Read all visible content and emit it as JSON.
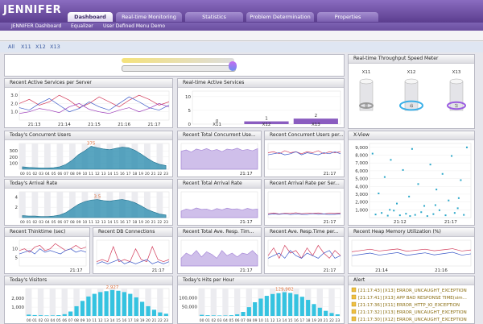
{
  "header": {
    "logo": "JENNIFER",
    "tabs": [
      "Dashboard",
      "Real-time Monitoring",
      "Statistics",
      "Problem Determination",
      "Properties"
    ]
  },
  "subnav": [
    "JENNIFER Dashboard",
    "Equalizer",
    "User Defined Menu Demo"
  ],
  "server_tabs": [
    "All",
    "X11",
    "X12",
    "X13"
  ],
  "hours": [
    "00",
    "01",
    "02",
    "03",
    "04",
    "05",
    "06",
    "07",
    "08",
    "09",
    "10",
    "11",
    "12",
    "13",
    "14",
    "15",
    "16",
    "17",
    "18",
    "19",
    "20",
    "21",
    "22",
    "23"
  ],
  "panels": [
    {
      "title": "Recent Active Services per Server",
      "type": "line",
      "ylim": [
        0,
        3.5
      ],
      "yticks": [
        {
          "value": 1,
          "label": "1.0"
        },
        {
          "value": 2,
          "label": "2.0"
        },
        {
          "value": 3,
          "label": "3.0"
        }
      ],
      "xticks": [
        "21:13",
        "21:14",
        "21:15",
        "21:16",
        "21:17"
      ],
      "series": [
        {
          "color": "#d23b5a",
          "values": [
            2,
            2.5,
            1.8,
            2.2,
            3,
            2.4,
            1.5,
            2,
            2.8,
            2.2,
            1.6,
            2.4,
            3,
            2.5,
            1.8,
            2.2
          ]
        },
        {
          "color": "#3b58c8",
          "values": [
            1.5,
            1.2,
            2,
            2.6,
            1.8,
            1,
            1.4,
            2.2,
            1.6,
            1.2,
            2,
            2.8,
            2.2,
            1.5,
            1.2,
            1.8
          ]
        },
        {
          "color": "#9b3bb8",
          "values": [
            0.8,
            1,
            1.4,
            1.2,
            0.9,
            1.6,
            2,
            1.3,
            1,
            0.8,
            1.2,
            1.5,
            1,
            1.4,
            2,
            1.6
          ]
        }
      ]
    },
    {
      "title": "Real-time Active Services",
      "type": "bar",
      "ylim": [
        0,
        12
      ],
      "yticks": [
        0,
        5,
        10
      ],
      "categories": [
        "X11",
        "X12",
        "X13"
      ],
      "values": [
        0,
        1,
        2
      ],
      "color": "#8a5cc0"
    },
    {
      "title": "Real-time Throughput Speed Meter",
      "type": "meter",
      "categories": [
        "X11",
        "X12",
        "X13"
      ],
      "values": [
        0,
        4,
        2
      ]
    },
    {
      "title": "Today's Concurrent Users",
      "type": "hourly_area",
      "ylim": [
        0,
        420
      ],
      "yticks": [
        100,
        200,
        300
      ],
      "color": "#2f8fb0",
      "values": [
        40,
        30,
        25,
        20,
        20,
        25,
        40,
        80,
        150,
        240,
        300,
        375,
        350,
        330,
        320,
        340,
        360,
        350,
        310,
        250,
        180,
        120,
        80,
        60
      ]
    },
    {
      "title": "Recent Total Concurrent Use...",
      "type": "area",
      "ylim": [
        0,
        60
      ],
      "xticks": [
        "21:17"
      ],
      "color": "#a88ad8",
      "values": [
        42,
        45,
        40,
        47,
        44,
        48,
        43,
        46,
        41,
        47,
        45,
        49,
        44,
        46,
        43,
        48
      ]
    },
    {
      "title": "Recent Concurrent Users per...",
      "type": "line",
      "ylim": [
        0,
        25
      ],
      "xticks": [
        "21:17"
      ],
      "series": [
        {
          "color": "#d23b5a",
          "values": [
            16,
            17,
            15,
            18,
            16,
            17,
            15,
            17,
            16,
            18,
            15,
            17,
            16,
            17
          ]
        },
        {
          "color": "#3b58c8",
          "values": [
            14,
            15,
            16,
            14,
            15,
            17,
            14,
            16,
            15,
            14,
            16,
            15,
            17,
            15
          ]
        }
      ]
    },
    {
      "title": "X-View",
      "type": "scatter",
      "xlim": [
        0,
        10
      ],
      "ylim": [
        0,
        9500
      ],
      "color": "#2aa7c9",
      "yticks": [
        {
          "value": 1000,
          "label": "1,000"
        },
        {
          "value": 2000,
          "label": "2,000"
        },
        {
          "value": 3000,
          "label": "3,000"
        },
        {
          "value": 4000,
          "label": "4,000"
        },
        {
          "value": 5000,
          "label": "5,000"
        },
        {
          "value": 6000,
          "label": "6,000"
        },
        {
          "value": 7000,
          "label": "7,000"
        },
        {
          "value": 8000,
          "label": "8,000"
        },
        {
          "value": 9000,
          "label": "9,000"
        }
      ],
      "xticks": [
        {
          "value": 3,
          "label": "21:12"
        },
        {
          "value": 8,
          "label": "21:17"
        }
      ],
      "x": [
        0.3,
        0.6,
        0.9,
        1.2,
        1.5,
        1.8,
        2.1,
        2.4,
        2.7,
        3.0,
        3.3,
        3.6,
        3.9,
        4.2,
        4.5,
        4.8,
        5.1,
        5.4,
        5.7,
        6.0,
        6.3,
        6.6,
        6.9,
        7.2,
        7.5,
        7.8,
        8.1,
        8.4,
        8.7,
        9.0,
        9.3,
        9.6,
        2.0,
        4.0,
        6.5,
        8.8
      ],
      "y": [
        8200,
        400,
        3100,
        600,
        5200,
        250,
        7400,
        900,
        1800,
        300,
        6100,
        500,
        2700,
        8800,
        350,
        4300,
        700,
        1500,
        200,
        6800,
        450,
        3600,
        950,
        5600,
        300,
        2200,
        7900,
        600,
        1200,
        4800,
        350,
        9000,
        1000,
        200,
        1600,
        2500
      ]
    },
    {
      "title": "Today's Arrival Rate",
      "type": "hourly_area",
      "ylim": [
        0,
        5
      ],
      "yticks": [
        2,
        4
      ],
      "color": "#2f8fb0",
      "values": [
        0.4,
        0.3,
        0.3,
        0.2,
        0.2,
        0.3,
        0.5,
        1,
        1.8,
        2.6,
        3.1,
        3.4,
        3.5,
        3.3,
        3.2,
        3.4,
        3.5,
        3.3,
        2.9,
        2.3,
        1.6,
        1.1,
        0.7,
        0.5
      ]
    },
    {
      "title": "Recent Total Arrival Rate",
      "type": "area",
      "ylim": [
        0,
        12
      ],
      "xticks": [
        "21:17"
      ],
      "color": "#a88ad8",
      "values": [
        3,
        4,
        3.5,
        4.5,
        3.8,
        4,
        3.2,
        4.2,
        3.6,
        4.4,
        3.9,
        4.1,
        3.5,
        4.3,
        3.7,
        4
      ]
    },
    {
      "title": "Recent Arrival Rate per Ser...",
      "type": "line",
      "ylim": [
        0,
        10
      ],
      "xticks": [
        "21:17"
      ],
      "series": [
        {
          "color": "#d23b5a",
          "values": [
            1.5,
            1.8,
            1.4,
            1.7,
            1.6,
            1.9,
            1.5,
            1.7,
            1.6,
            1.8,
            1.4,
            1.7,
            1.6,
            1.8
          ]
        },
        {
          "color": "#3b58c8",
          "values": [
            1.2,
            1.4,
            1.3,
            1.5,
            1.2,
            1.4,
            1.3,
            1.2,
            1.5,
            1.3,
            1.4,
            1.2,
            1.3,
            1.4
          ]
        }
      ]
    },
    {
      "title": "Recent Thinktime (sec)",
      "type": "line",
      "ylim": [
        0,
        15
      ],
      "yticks": [
        5,
        10
      ],
      "xticks": [
        "21:17"
      ],
      "series": [
        {
          "color": "#d23b5a",
          "values": [
            9,
            10,
            8,
            11,
            12,
            9,
            10,
            13,
            11,
            9,
            10,
            12,
            10,
            11
          ]
        },
        {
          "color": "#3b58c8",
          "values": [
            7,
            8,
            9,
            7,
            10,
            8,
            9,
            8,
            7,
            9,
            10,
            8,
            9,
            8
          ]
        }
      ]
    },
    {
      "title": "Recent DB Connections",
      "type": "line",
      "ylim": [
        0,
        12
      ],
      "xticks": [
        "21:17"
      ],
      "series": [
        {
          "color": "#d23b5a",
          "values": [
            2,
            3,
            2,
            9,
            2,
            3,
            2,
            8,
            3,
            2,
            9,
            3,
            2,
            3
          ]
        },
        {
          "color": "#3b58c8",
          "values": [
            1,
            2,
            1,
            2,
            3,
            1,
            2,
            1,
            2,
            3,
            1,
            2,
            1,
            2
          ]
        }
      ]
    },
    {
      "title": "Recent Total Ave. Resp. Tim...",
      "type": "area",
      "ylim": [
        0,
        10
      ],
      "xticks": [
        "21:17"
      ],
      "color": "#a88ad8",
      "values": [
        3,
        5,
        4,
        6,
        3.5,
        5.5,
        4.5,
        3,
        6,
        4,
        5,
        3.5,
        5,
        4.5,
        6,
        4
      ]
    },
    {
      "title": "Recent Ave. Resp.Time per...",
      "type": "line",
      "ylim": [
        0,
        10
      ],
      "xticks": [
        "21:17"
      ],
      "series": [
        {
          "color": "#d23b5a",
          "values": [
            4,
            7,
            3,
            8,
            5,
            6,
            3,
            7,
            4,
            8,
            5,
            3,
            6,
            4
          ]
        },
        {
          "color": "#3b58c8",
          "values": [
            3,
            4,
            5,
            3,
            6,
            4,
            3,
            5,
            4,
            3,
            5,
            6,
            3,
            4
          ]
        }
      ]
    },
    {
      "title": "Recent Heap Memory Utilization (%)",
      "type": "line",
      "ylim": [
        0,
        100
      ],
      "xticks": [
        "21:14",
        "21:16"
      ],
      "series": [
        {
          "color": "#d23b5a",
          "values": [
            55,
            60,
            65,
            58,
            62,
            66,
            57,
            61,
            65,
            59,
            63,
            67,
            58,
            62
          ]
        },
        {
          "color": "#3b58c8",
          "values": [
            40,
            45,
            50,
            42,
            47,
            52,
            41,
            46,
            51,
            43,
            48,
            53,
            42,
            47
          ]
        }
      ]
    },
    {
      "title": "Today's Visitors",
      "type": "hourly_bars",
      "ylim": [
        0,
        3100
      ],
      "yticks": [
        {
          "value": 1000,
          "label": "1,000"
        },
        {
          "value": 2000,
          "label": "2,000"
        }
      ],
      "color": "#35c3e0",
      "values": [
        150,
        100,
        80,
        60,
        60,
        90,
        200,
        500,
        1100,
        1700,
        2200,
        2500,
        2700,
        2800,
        2927,
        2850,
        2700,
        2500,
        2100,
        1600,
        1100,
        700,
        400,
        250
      ],
      "peak_label": "2,927"
    },
    {
      "title": "Today's Hits per Hour",
      "type": "hourly_bars",
      "ylim": [
        0,
        150000
      ],
      "yticks": [
        {
          "value": 50000,
          "label": "50,000"
        },
        {
          "value": 100000,
          "label": "100,000"
        }
      ],
      "color": "#35c3e0",
      "values": [
        6000,
        4000,
        3000,
        2500,
        2500,
        4000,
        9000,
        22000,
        48000,
        75000,
        95000,
        110000,
        120000,
        125000,
        129982,
        126000,
        118000,
        105000,
        88000,
        65000,
        45000,
        28000,
        16000,
        9000
      ],
      "peak_label": "129,982"
    },
    {
      "title": "Alert",
      "type": "alert",
      "lines": [
        "[21:17:43] [X13] ERROR_UNCAUGHT_EXCEPTION",
        "[21:17:41] [X13] APP BAD RESPONSE TIME(sim...",
        "[21:17:36] [X11] ERROR_HTTP_IO_EXCEPTION",
        "[21:17:32] [X13] ERROR_UNCAUGHT_EXCEPTION",
        "[21:17:30] [X12] ERROR_UNCAUGHT_EXCEPTION"
      ]
    }
  ]
}
